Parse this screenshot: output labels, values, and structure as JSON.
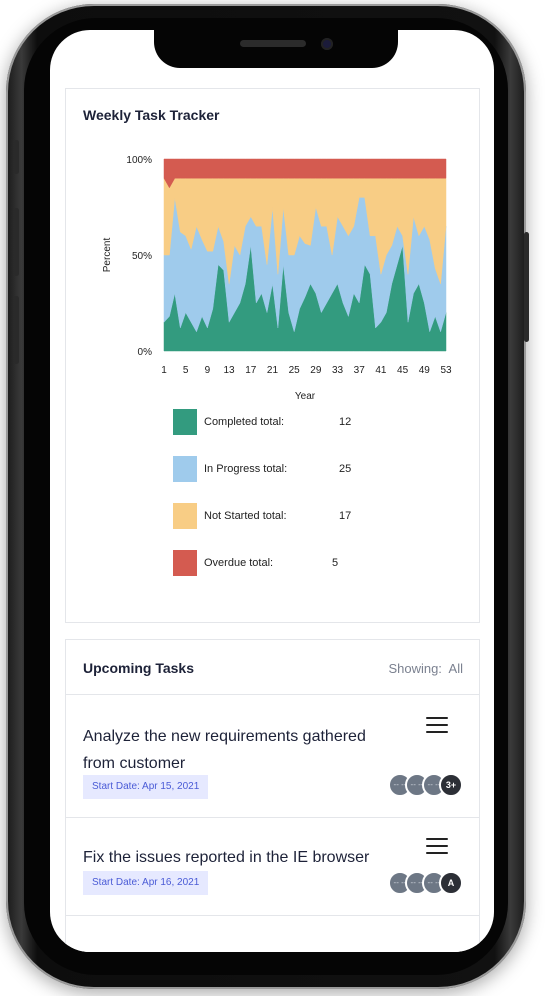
{
  "tracker": {
    "title": "Weekly Task Tracker"
  },
  "chart_data": {
    "type": "area",
    "stacked": "percent",
    "xlabel": "Year",
    "ylabel": "Percent",
    "x_ticks": [
      1,
      5,
      9,
      13,
      17,
      21,
      25,
      29,
      33,
      37,
      41,
      45,
      49,
      53
    ],
    "y_ticks": [
      "0%",
      "50%",
      "100%"
    ],
    "x": [
      1,
      2,
      3,
      4,
      5,
      6,
      7,
      8,
      9,
      10,
      11,
      12,
      13,
      14,
      15,
      16,
      17,
      18,
      19,
      20,
      21,
      22,
      23,
      24,
      25,
      26,
      27,
      28,
      29,
      30,
      31,
      32,
      33,
      34,
      35,
      36,
      37,
      38,
      39,
      40,
      41,
      42,
      43,
      44,
      45,
      46,
      47,
      48,
      49,
      50,
      51,
      52,
      53
    ],
    "series": [
      {
        "name": "Completed",
        "color": "#339b7f",
        "values": [
          15,
          18,
          30,
          12,
          20,
          15,
          10,
          18,
          12,
          22,
          45,
          42,
          15,
          20,
          25,
          35,
          55,
          25,
          30,
          20,
          35,
          12,
          45,
          20,
          10,
          22,
          28,
          35,
          30,
          20,
          25,
          30,
          35,
          25,
          18,
          30,
          25,
          45,
          40,
          12,
          15,
          20,
          35,
          45,
          55,
          15,
          30,
          35,
          25,
          10,
          18,
          10,
          20
        ]
      },
      {
        "name": "In Progress",
        "color": "#9fcbec",
        "values": [
          35,
          32,
          50,
          50,
          40,
          38,
          55,
          40,
          40,
          30,
          20,
          15,
          20,
          35,
          25,
          30,
          15,
          40,
          35,
          25,
          40,
          28,
          30,
          30,
          40,
          38,
          28,
          20,
          45,
          45,
          40,
          20,
          35,
          40,
          42,
          35,
          55,
          35,
          20,
          48,
          25,
          30,
          20,
          20,
          5,
          25,
          40,
          25,
          40,
          48,
          25,
          25,
          45
        ]
      },
      {
        "name": "Not Started",
        "color": "#f8cd85",
        "values": [
          40,
          35,
          10,
          28,
          30,
          37,
          25,
          32,
          38,
          38,
          25,
          33,
          55,
          35,
          40,
          25,
          20,
          25,
          25,
          45,
          15,
          50,
          15,
          40,
          40,
          30,
          34,
          35,
          15,
          25,
          25,
          40,
          20,
          25,
          30,
          25,
          10,
          10,
          30,
          30,
          50,
          40,
          35,
          25,
          30,
          50,
          20,
          30,
          25,
          32,
          47,
          55,
          25
        ]
      },
      {
        "name": "Overdue",
        "color": "#d45b50",
        "values": [
          10,
          15,
          10,
          10,
          10,
          10,
          10,
          10,
          10,
          10,
          10,
          10,
          10,
          10,
          10,
          10,
          10,
          10,
          10,
          10,
          10,
          10,
          10,
          10,
          10,
          10,
          10,
          10,
          10,
          10,
          10,
          10,
          10,
          10,
          10,
          10,
          10,
          10,
          10,
          10,
          10,
          10,
          10,
          10,
          10,
          10,
          10,
          10,
          10,
          10,
          10,
          10,
          10
        ]
      }
    ],
    "ylim": [
      0,
      100
    ],
    "legend": [
      {
        "label": "Completed total:",
        "value": "12",
        "color": "#339b7f"
      },
      {
        "label": "In Progress total:",
        "value": "25",
        "color": "#9fcbec"
      },
      {
        "label": "Not Started total:",
        "value": "17",
        "color": "#f8cd85"
      },
      {
        "label": "Overdue total:",
        "value": "5",
        "color": "#d45b50"
      }
    ]
  },
  "upcoming": {
    "title": "Upcoming Tasks",
    "showing_label": "Showing:",
    "showing_value": "All",
    "tasks": [
      {
        "title_line1": "Analyze the new requirements gathered",
        "title_line2": "from customer",
        "start_date": "Start Date: Apr 15, 2021",
        "avatars": [
          "-- --",
          "-- --",
          "-- --",
          "3+"
        ]
      },
      {
        "title_line1": "Fix the issues reported in the IE browser",
        "title_line2": "",
        "start_date": "Start Date: Apr 16, 2021",
        "avatars": [
          "-- --",
          "-- --",
          "-- --",
          "A"
        ]
      }
    ]
  }
}
